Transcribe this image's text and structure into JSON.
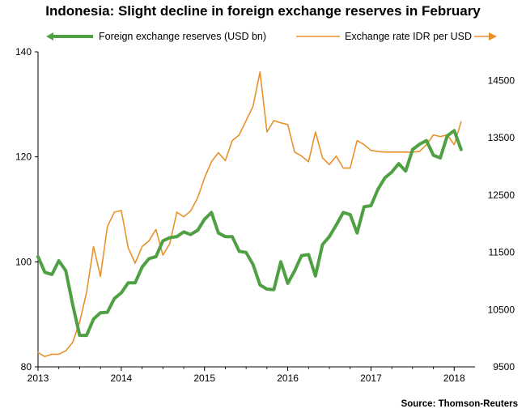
{
  "chart_data": {
    "type": "line",
    "title": "Indonesia: Slight decline in foreign exchange reserves in February",
    "source": "Source: Thomson-Reuters",
    "x_ticks": [
      "2013",
      "2014",
      "2015",
      "2016",
      "2017",
      "2018"
    ],
    "x_range": [
      2013.0,
      2018.25
    ],
    "y_left": {
      "ticks": [
        "80",
        "100",
        "120",
        "140"
      ],
      "range": [
        80,
        140
      ]
    },
    "y_right": {
      "ticks": [
        "9500",
        "10500",
        "11500",
        "12500",
        "13500",
        "14500"
      ],
      "range": [
        9500,
        15000
      ]
    },
    "legend": {
      "placement": "top"
    },
    "series": [
      {
        "name": "Foreign exchange reserves (USD bn)",
        "axis": "left",
        "color": "#4ea043",
        "x": [
          2013.0,
          2013.083,
          2013.167,
          2013.25,
          2013.333,
          2013.417,
          2013.5,
          2013.583,
          2013.667,
          2013.75,
          2013.833,
          2013.917,
          2014.0,
          2014.083,
          2014.167,
          2014.25,
          2014.333,
          2014.417,
          2014.5,
          2014.583,
          2014.667,
          2014.75,
          2014.833,
          2014.917,
          2015.0,
          2015.083,
          2015.167,
          2015.25,
          2015.333,
          2015.417,
          2015.5,
          2015.583,
          2015.667,
          2015.75,
          2015.833,
          2015.917,
          2016.0,
          2016.083,
          2016.167,
          2016.25,
          2016.333,
          2016.417,
          2016.5,
          2016.583,
          2016.667,
          2016.75,
          2016.833,
          2016.917,
          2017.0,
          2017.083,
          2017.167,
          2017.25,
          2017.333,
          2017.417,
          2017.5,
          2017.583,
          2017.667,
          2017.75,
          2017.833,
          2017.917,
          2018.0,
          2018.083
        ],
        "values": [
          101.0,
          98.0,
          97.6,
          100.2,
          98.3,
          91.8,
          86.0,
          86.0,
          89.1,
          90.3,
          90.4,
          93.0,
          94.1,
          96.0,
          96.0,
          99.0,
          100.6,
          101.0,
          104.0,
          104.6,
          104.8,
          105.7,
          105.2,
          106.0,
          108.1,
          109.4,
          105.5,
          104.8,
          104.8,
          102.0,
          101.8,
          99.5,
          95.6,
          94.8,
          94.7,
          100.0,
          95.9,
          98.3,
          101.2,
          101.4,
          97.3,
          103.3,
          104.8,
          107.0,
          109.4,
          109.0,
          105.5,
          110.5,
          110.7,
          113.8,
          116.0,
          117.1,
          118.7,
          117.3,
          121.4,
          122.4,
          123.1,
          120.3,
          119.8,
          124.0,
          125.0,
          121.4
        ]
      },
      {
        "name": "Exchange rate IDR per USD",
        "axis": "right",
        "color": "#e8912b",
        "x": [
          2013.0,
          2013.083,
          2013.167,
          2013.25,
          2013.333,
          2013.417,
          2013.5,
          2013.583,
          2013.667,
          2013.75,
          2013.833,
          2013.917,
          2014.0,
          2014.083,
          2014.167,
          2014.25,
          2014.333,
          2014.417,
          2014.5,
          2014.583,
          2014.667,
          2014.75,
          2014.833,
          2014.917,
          2015.0,
          2015.083,
          2015.167,
          2015.25,
          2015.333,
          2015.417,
          2015.5,
          2015.583,
          2015.667,
          2015.75,
          2015.833,
          2015.917,
          2016.0,
          2016.083,
          2016.167,
          2016.25,
          2016.333,
          2016.417,
          2016.5,
          2016.583,
          2016.667,
          2016.75,
          2016.833,
          2016.917,
          2017.0,
          2017.083,
          2017.167,
          2017.25,
          2017.333,
          2017.417,
          2017.5,
          2017.583,
          2017.667,
          2017.75,
          2017.833,
          2017.917,
          2018.0,
          2018.083
        ],
        "values": [
          9750,
          9680,
          9720,
          9720,
          9780,
          9930,
          10280,
          10800,
          11600,
          11080,
          11950,
          12200,
          12230,
          11580,
          11310,
          11600,
          11700,
          11900,
          11450,
          11650,
          12200,
          12120,
          12220,
          12450,
          12800,
          13080,
          13240,
          13100,
          13450,
          13550,
          13800,
          14050,
          14650,
          13600,
          13800,
          13760,
          13730,
          13250,
          13180,
          13080,
          13600,
          13150,
          13030,
          13180,
          12970,
          12970,
          13450,
          13380,
          13280,
          13260,
          13250,
          13250,
          13250,
          13250,
          13250,
          13260,
          13380,
          13550,
          13520,
          13550,
          13380,
          13780
        ]
      }
    ]
  }
}
